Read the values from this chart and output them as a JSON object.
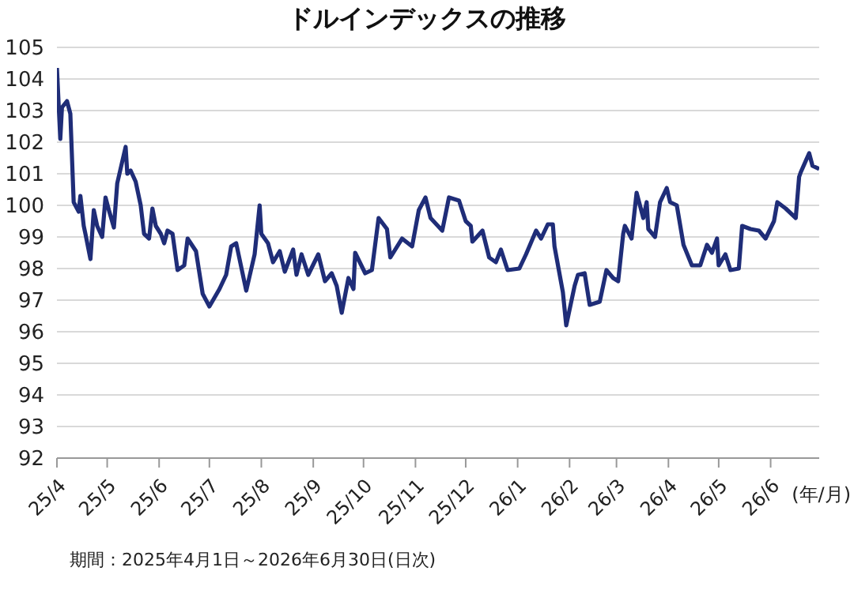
{
  "chart_data": {
    "type": "line",
    "title": "ドルインデックスの推移",
    "xlabel": "(年/月)",
    "annotations": [
      "期間：2025年4月1日～2026年6月30日(日次)"
    ],
    "x": [
      "2025-04-01",
      "2025-04-03",
      "2025-04-04",
      "2025-04-07",
      "2025-04-09",
      "2025-04-11",
      "2025-04-14",
      "2025-04-15",
      "2025-04-17",
      "2025-04-18",
      "2025-04-21",
      "2025-04-23",
      "2025-04-25",
      "2025-04-28",
      "2025-04-30",
      "2025-05-02",
      "2025-05-05",
      "2025-05-07",
      "2025-05-12",
      "2025-05-13",
      "2025-05-15",
      "2025-05-18",
      "2025-05-21",
      "2025-05-23",
      "2025-05-26",
      "2025-05-28",
      "2025-05-30",
      "2025-06-02",
      "2025-06-04",
      "2025-06-06",
      "2025-06-09",
      "2025-06-12",
      "2025-06-16",
      "2025-06-18",
      "2025-06-23",
      "2025-06-27",
      "2025-07-01",
      "2025-07-07",
      "2025-07-11",
      "2025-07-14",
      "2025-07-17",
      "2025-07-23",
      "2025-07-28",
      "2025-07-31",
      "2025-08-01",
      "2025-08-05",
      "2025-08-08",
      "2025-08-12",
      "2025-08-15",
      "2025-08-20",
      "2025-08-22",
      "2025-08-25",
      "2025-08-29",
      "2025-09-04",
      "2025-09-08",
      "2025-09-12",
      "2025-09-15",
      "2025-09-18",
      "2025-09-22",
      "2025-09-25",
      "2025-09-26",
      "2025-10-02",
      "2025-10-06",
      "2025-10-10",
      "2025-10-15",
      "2025-10-17",
      "2025-10-24",
      "2025-10-30",
      "2025-11-03",
      "2025-11-07",
      "2025-11-10",
      "2025-11-17",
      "2025-11-21",
      "2025-11-27",
      "2025-12-01",
      "2025-12-04",
      "2025-12-05",
      "2025-12-11",
      "2025-12-15",
      "2025-12-19",
      "2025-12-22",
      "2025-12-26",
      "2026-01-02",
      "2026-01-06",
      "2026-01-12",
      "2026-01-15",
      "2026-01-19",
      "2026-01-22",
      "2026-01-23",
      "2026-01-28",
      "2026-01-30",
      "2026-02-04",
      "2026-02-06",
      "2026-02-10",
      "2026-02-13",
      "2026-02-19",
      "2026-02-23",
      "2026-02-27",
      "2026-03-02",
      "2026-03-05",
      "2026-03-06",
      "2026-03-10",
      "2026-03-13",
      "2026-03-17",
      "2026-03-19",
      "2026-03-20",
      "2026-03-24",
      "2026-03-27",
      "2026-03-31",
      "2026-04-02",
      "2026-04-06",
      "2026-04-10",
      "2026-04-15",
      "2026-04-20",
      "2026-04-24",
      "2026-04-27",
      "2026-04-30",
      "2026-05-01",
      "2026-05-05",
      "2026-05-08",
      "2026-05-13",
      "2026-05-15",
      "2026-05-20",
      "2026-05-25",
      "2026-05-29",
      "2026-06-03",
      "2026-06-05",
      "2026-06-10",
      "2026-06-16",
      "2026-06-18",
      "2026-06-19",
      "2026-06-24",
      "2026-06-26",
      "2026-06-30"
    ],
    "series": [
      {
        "color": "#1f2d78",
        "values": [
          104.35,
          102.1,
          103.1,
          103.3,
          102.9,
          100.1,
          99.8,
          100.3,
          99.35,
          99.1,
          98.3,
          99.85,
          99.35,
          99.0,
          100.25,
          99.85,
          99.3,
          100.7,
          101.85,
          101.0,
          101.1,
          100.75,
          100.0,
          99.1,
          98.95,
          99.9,
          99.35,
          99.1,
          98.8,
          99.2,
          99.1,
          97.95,
          98.1,
          98.95,
          98.55,
          97.2,
          96.8,
          97.35,
          97.8,
          98.7,
          98.8,
          97.3,
          98.45,
          100.0,
          99.1,
          98.8,
          98.2,
          98.55,
          97.9,
          98.6,
          97.8,
          98.45,
          97.8,
          98.45,
          97.6,
          97.85,
          97.45,
          96.6,
          97.7,
          97.35,
          98.5,
          97.85,
          97.95,
          99.6,
          99.25,
          98.35,
          98.95,
          98.7,
          99.85,
          100.25,
          99.6,
          99.2,
          100.25,
          100.15,
          99.5,
          99.35,
          98.85,
          99.2,
          98.35,
          98.2,
          98.6,
          97.95,
          98.0,
          98.45,
          99.2,
          98.95,
          99.4,
          99.4,
          98.7,
          97.25,
          96.2,
          97.45,
          97.8,
          97.85,
          96.85,
          96.95,
          97.95,
          97.7,
          97.6,
          99.1,
          99.35,
          98.95,
          100.4,
          99.6,
          100.1,
          99.25,
          99.0,
          100.1,
          100.55,
          100.1,
          100.0,
          98.75,
          98.1,
          98.1,
          98.75,
          98.5,
          98.95,
          98.1,
          98.45,
          97.95,
          98.0,
          99.35,
          99.25,
          99.2,
          98.95,
          99.5,
          100.1,
          99.9,
          99.6,
          100.9,
          101.05,
          101.65,
          101.25,
          101.15
        ]
      }
    ],
    "xlim": [
      "2025-04-01",
      "2026-06-30"
    ],
    "xticks": [
      {
        "value": "2025-04-01",
        "label": "25/4"
      },
      {
        "value": "2025-05-01",
        "label": "25/5"
      },
      {
        "value": "2025-06-01",
        "label": "25/6"
      },
      {
        "value": "2025-07-01",
        "label": "25/7"
      },
      {
        "value": "2025-08-01",
        "label": "25/8"
      },
      {
        "value": "2025-09-01",
        "label": "25/9"
      },
      {
        "value": "2025-10-01",
        "label": "25/10"
      },
      {
        "value": "2025-11-01",
        "label": "25/11"
      },
      {
        "value": "2025-12-01",
        "label": "25/12"
      },
      {
        "value": "2026-01-01",
        "label": "26/1"
      },
      {
        "value": "2026-02-01",
        "label": "26/2"
      },
      {
        "value": "2026-03-01",
        "label": "26/3"
      },
      {
        "value": "2026-04-01",
        "label": "26/4"
      },
      {
        "value": "2026-05-01",
        "label": "26/5"
      },
      {
        "value": "2026-06-01",
        "label": "26/6"
      }
    ],
    "ylim": [
      92,
      105
    ],
    "yticks": [
      92,
      93,
      94,
      95,
      96,
      97,
      98,
      99,
      100,
      101,
      102,
      103,
      104,
      105
    ],
    "grid": "y",
    "legend": false
  }
}
